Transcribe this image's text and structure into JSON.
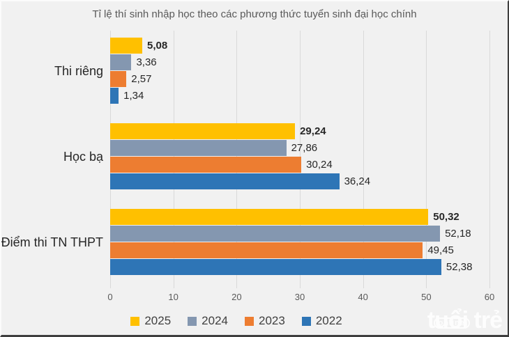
{
  "chart_data": {
    "type": "bar",
    "orientation": "horizontal",
    "title": "Tỉ lệ thí sinh nhập học theo các phương thức tuyển sinh đại học chính",
    "categories": [
      "Thi riêng",
      "Học bạ",
      "Điểm thi TN THPT"
    ],
    "series": [
      {
        "name": "2025",
        "color": "#FFC000",
        "values": [
          5.08,
          29.24,
          50.32
        ],
        "label_bold": true
      },
      {
        "name": "2024",
        "color": "#8497B0",
        "values": [
          3.36,
          27.86,
          52.18
        ],
        "label_bold": false
      },
      {
        "name": "2023",
        "color": "#ED7D31",
        "values": [
          2.57,
          30.24,
          49.45
        ],
        "label_bold": false
      },
      {
        "name": "2022",
        "color": "#2E75B6",
        "values": [
          1.34,
          36.24,
          52.38
        ],
        "label_bold": false
      }
    ],
    "x_ticks": [
      0,
      10,
      20,
      30,
      40,
      50,
      60
    ],
    "xlim": [
      0,
      60
    ],
    "grid": true,
    "legend_position": "bottom",
    "value_decimal_separator": ","
  },
  "watermark": {
    "main": "tuổi trẻ",
    "sub": "online"
  },
  "colors": {
    "background": "#F1F1F1",
    "gridline": "#D9D9D9",
    "title_text": "#595959",
    "label_text": "#262626",
    "tick_text": "#595959",
    "legend_text": "#404040"
  }
}
